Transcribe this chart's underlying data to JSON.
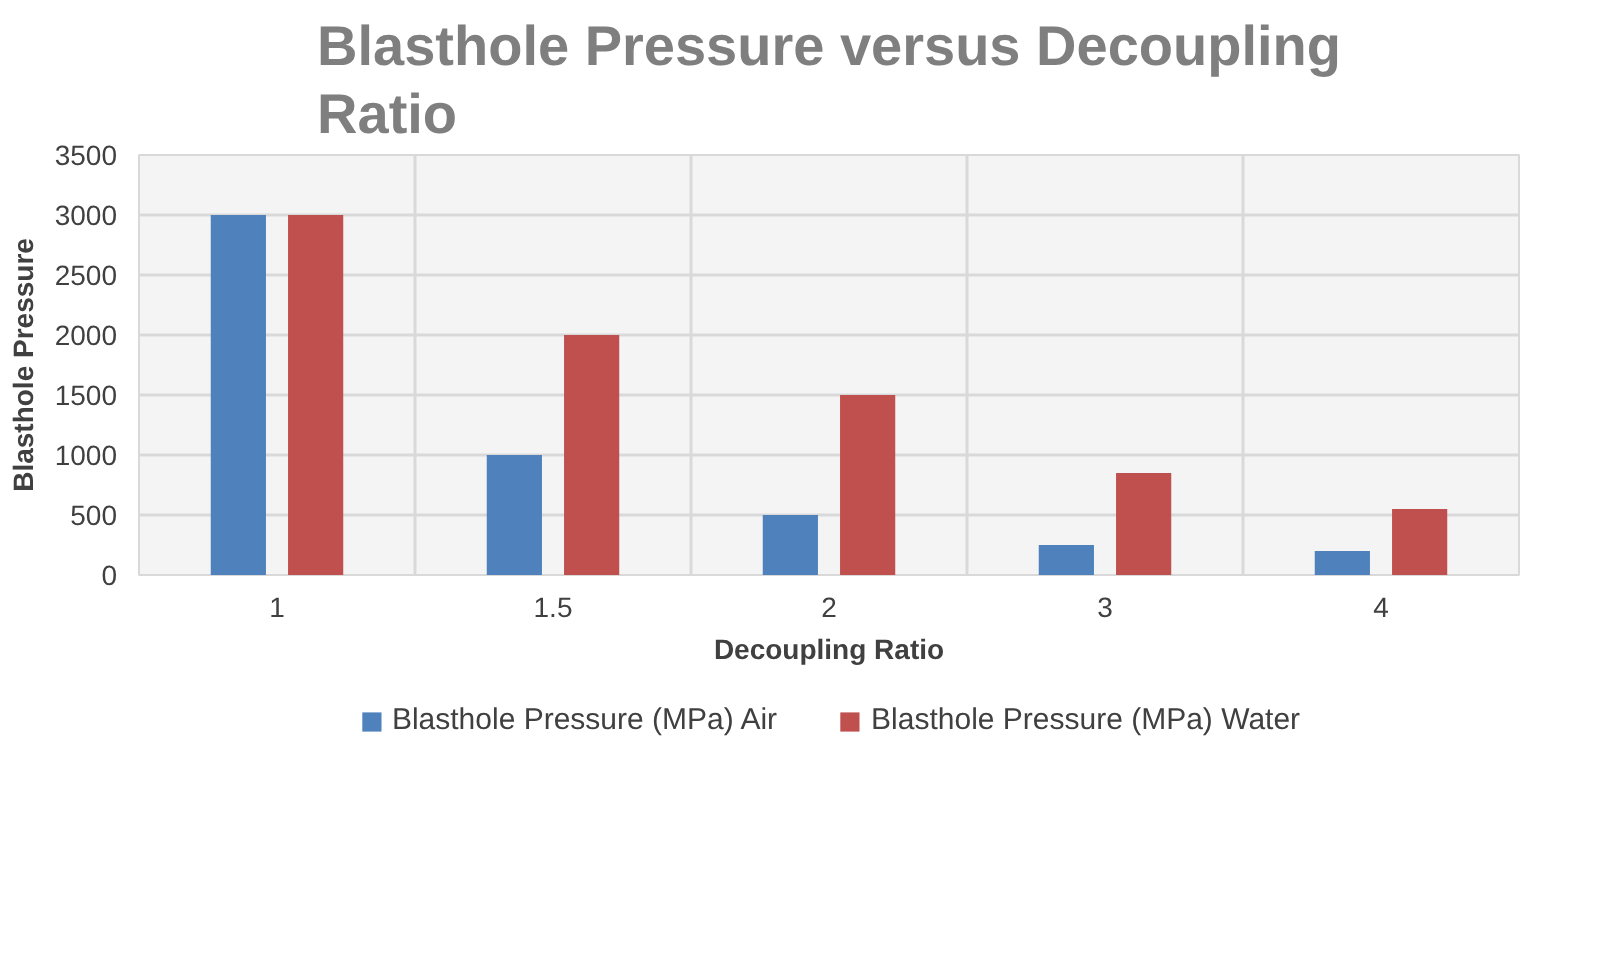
{
  "chart_data": {
    "type": "bar",
    "title": "Blasthole Pressure versus Decoupling Ratio",
    "xlabel": "Decoupling Ratio",
    "ylabel": "Blasthole Pressure",
    "categories": [
      "1",
      "1.5",
      "2",
      "3",
      "4"
    ],
    "series": [
      {
        "name": "Blasthole Pressure (MPa) Air",
        "color": "#4f81bd",
        "values": [
          3000,
          1000,
          500,
          250,
          200
        ]
      },
      {
        "name": "Blasthole Pressure (MPa) Water",
        "color": "#c0504d",
        "values": [
          3000,
          2000,
          1500,
          850,
          550
        ]
      }
    ],
    "ylim": [
      0,
      3500
    ],
    "yticks": [
      0,
      500,
      1000,
      1500,
      2000,
      2500,
      3000,
      3500
    ],
    "grid": true,
    "legend": "bottom"
  }
}
